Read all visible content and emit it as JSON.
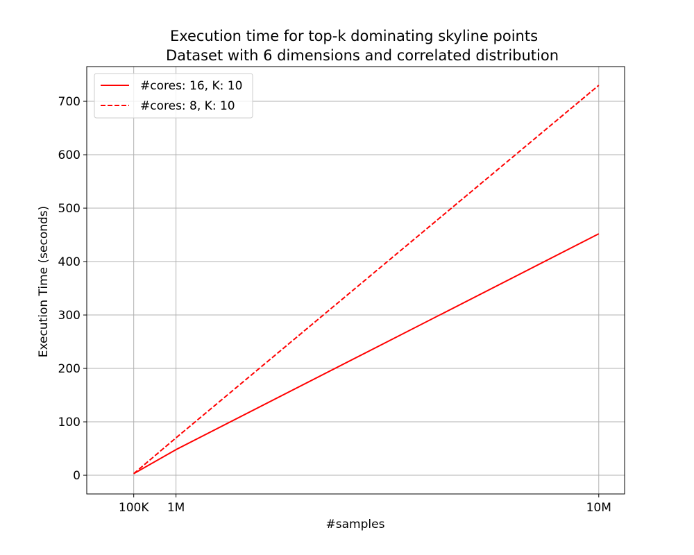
{
  "chart_data": {
    "type": "line",
    "title": "Execution time for top-k dominating skyline points",
    "subtitle": "Dataset with 6 dimensions and correlated distribution",
    "xlabel": "#samples",
    "ylabel": "Execution Time (seconds)",
    "x": [
      100000,
      1000000,
      10000000
    ],
    "x_tick_values": [
      100000,
      1000000,
      10000000
    ],
    "x_tick_labels": [
      "100K",
      "1M",
      "10M"
    ],
    "xlim": [
      -900000,
      10550000
    ],
    "ylim": [
      -35,
      765
    ],
    "y_ticks": [
      0,
      100,
      200,
      300,
      400,
      500,
      600,
      700
    ],
    "grid": true,
    "legend_position": "top-left",
    "series": [
      {
        "name": "#cores: 16, K: 10",
        "values": [
          3,
          48,
          452
        ],
        "color": "#ff0000",
        "style": "solid"
      },
      {
        "name": "#cores: 8, K: 10",
        "values": [
          3,
          70,
          730
        ],
        "color": "#ff0000",
        "style": "dashed"
      }
    ]
  }
}
